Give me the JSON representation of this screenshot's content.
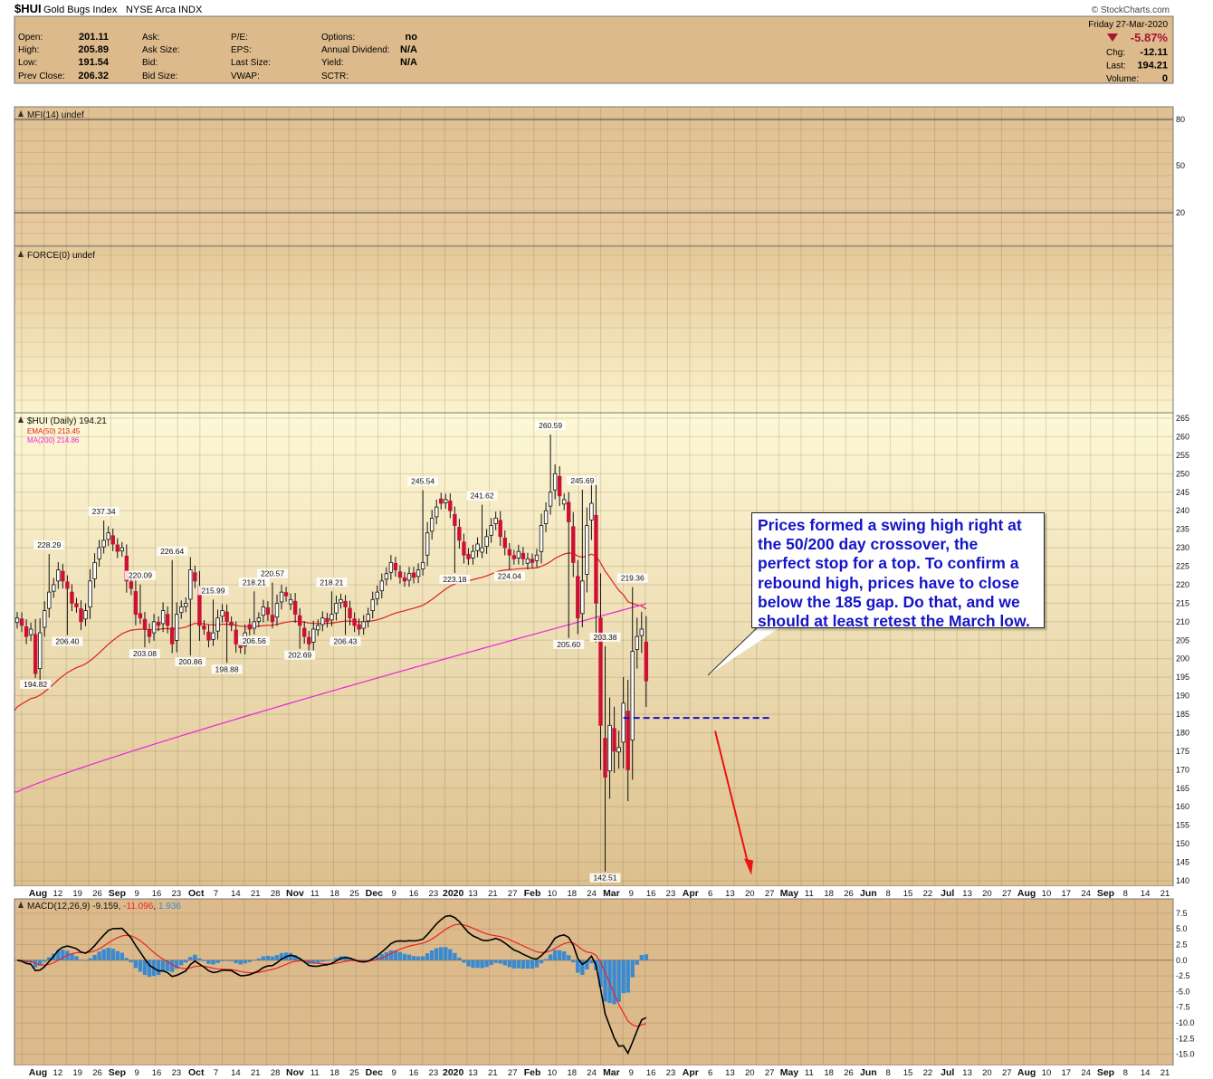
{
  "header": {
    "symbol": "$HUI",
    "name": "Gold Bugs Index",
    "exchange": "NYSE Arca",
    "type": "INDX",
    "watermark": "© StockCharts.com",
    "date": "Friday  27-Mar-2020",
    "change_pct": "-5.87%",
    "quote_left": [
      {
        "label": "Open:",
        "value": "201.11"
      },
      {
        "label": "High:",
        "value": "205.89"
      },
      {
        "label": "Low:",
        "value": "191.54"
      },
      {
        "label": "Prev Close:",
        "value": "206.32"
      }
    ],
    "quote_col2": [
      "Ask:",
      "Ask Size:",
      "Bid:",
      "Bid Size:"
    ],
    "quote_col3": [
      "P/E:",
      "EPS:",
      "Last Size:",
      "VWAP:"
    ],
    "quote_col4": [
      {
        "label": "Options:",
        "value": "no"
      },
      {
        "label": "Annual Dividend:",
        "value": "N/A"
      },
      {
        "label": "Yield:",
        "value": "N/A"
      },
      {
        "label": "SCTR:",
        "value": ""
      }
    ],
    "quote_right": [
      {
        "label": "Chg:",
        "value": "-12.11"
      },
      {
        "label": "Last:",
        "value": "194.21"
      },
      {
        "label": "Volume:",
        "value": "0"
      }
    ]
  },
  "colors": {
    "panel_bg": "#dcba8c",
    "price_bg_top": "#fdf8d6",
    "price_bg_bottom": "#dcc08e",
    "up": "#ffffff",
    "down": "#cc1133",
    "ema50": "#dd2020",
    "ma200": "#ee22dd",
    "macd_line": "#000000",
    "signal_line": "#ee2222",
    "histogram": "#3a8ad0",
    "annotation": "#1414c8",
    "gap_line": "#1414c8",
    "arrow": "#ee1111"
  },
  "panels": {
    "mfi": {
      "label": "MFI(14) undef",
      "ticks": [
        "80",
        "50",
        "20"
      ]
    },
    "force": {
      "label": "FORCE(0) undef"
    },
    "price": {
      "label": "$HUI (Daily) 194.21",
      "ema_label": "EMA(50) 213.45",
      "ma_label": "MA(200) 214.86"
    },
    "macd": {
      "label_prefix": "MACD(12,26,9)",
      "macd_value": "-9.159",
      "signal_value": "-11.096",
      "hist_value": "1.936"
    }
  },
  "annotation": {
    "lines": [
      "Prices formed a swing high right at",
      "the 50/200 day crossover, the",
      "perfect stop for a top. To confirm a",
      "rebound high, prices have to close",
      "below the 185 gap. Do that, and we",
      "should at least retest the March low."
    ]
  },
  "chart_data": {
    "type": "candlestick",
    "title": "$HUI Gold Bugs Index NYSE Arca INDX",
    "y_range": [
      140,
      265
    ],
    "y_ticks": [
      140,
      145,
      150,
      155,
      160,
      165,
      170,
      175,
      180,
      185,
      190,
      195,
      200,
      205,
      210,
      215,
      220,
      225,
      230,
      235,
      240,
      245,
      250,
      255,
      260,
      265
    ],
    "macd_range": [
      -16.5,
      9.5
    ],
    "macd_ticks": [
      "7.5",
      "5.0",
      "2.5",
      "0.0",
      "-2.5",
      "-5.0",
      "-7.5",
      "-10.0",
      "-12.5",
      "-15.0"
    ],
    "x_axis_labels": [
      {
        "t": "Aug",
        "m": 1
      },
      {
        "t": "12",
        "m": 0
      },
      {
        "t": "19",
        "m": 0
      },
      {
        "t": "26",
        "m": 0
      },
      {
        "t": "Sep",
        "m": 1
      },
      {
        "t": "9",
        "m": 0
      },
      {
        "t": "16",
        "m": 0
      },
      {
        "t": "23",
        "m": 0
      },
      {
        "t": "Oct",
        "m": 1
      },
      {
        "t": "7",
        "m": 0
      },
      {
        "t": "14",
        "m": 0
      },
      {
        "t": "21",
        "m": 0
      },
      {
        "t": "28",
        "m": 0
      },
      {
        "t": "Nov",
        "m": 1
      },
      {
        "t": "11",
        "m": 0
      },
      {
        "t": "18",
        "m": 0
      },
      {
        "t": "25",
        "m": 0
      },
      {
        "t": "Dec",
        "m": 1
      },
      {
        "t": "9",
        "m": 0
      },
      {
        "t": "16",
        "m": 0
      },
      {
        "t": "23",
        "m": 0
      },
      {
        "t": "2020",
        "m": 1
      },
      {
        "t": "13",
        "m": 0
      },
      {
        "t": "21",
        "m": 0
      },
      {
        "t": "27",
        "m": 0
      },
      {
        "t": "Feb",
        "m": 1
      },
      {
        "t": "10",
        "m": 0
      },
      {
        "t": "18",
        "m": 0
      },
      {
        "t": "24",
        "m": 0
      },
      {
        "t": "Mar",
        "m": 1
      },
      {
        "t": "9",
        "m": 0
      },
      {
        "t": "16",
        "m": 0
      },
      {
        "t": "23",
        "m": 0
      },
      {
        "t": "Apr",
        "m": 1
      },
      {
        "t": "6",
        "m": 0
      },
      {
        "t": "13",
        "m": 0
      },
      {
        "t": "20",
        "m": 0
      },
      {
        "t": "27",
        "m": 0
      },
      {
        "t": "May",
        "m": 1
      },
      {
        "t": "11",
        "m": 0
      },
      {
        "t": "18",
        "m": 0
      },
      {
        "t": "26",
        "m": 0
      },
      {
        "t": "Jun",
        "m": 1
      },
      {
        "t": "8",
        "m": 0
      },
      {
        "t": "15",
        "m": 0
      },
      {
        "t": "22",
        "m": 0
      },
      {
        "t": "Jul",
        "m": 1
      },
      {
        "t": "13",
        "m": 0
      },
      {
        "t": "20",
        "m": 0
      },
      {
        "t": "27",
        "m": 0
      },
      {
        "t": "Aug",
        "m": 1
      },
      {
        "t": "10",
        "m": 0
      },
      {
        "t": "17",
        "m": 0
      },
      {
        "t": "24",
        "m": 0
      },
      {
        "t": "Sep",
        "m": 1
      },
      {
        "t": "8",
        "m": 0
      },
      {
        "t": "14",
        "m": 0
      },
      {
        "t": "21",
        "m": 0
      }
    ],
    "price_labels": [
      {
        "text": "237.34",
        "value": 237.34,
        "pos": "above",
        "i": 19
      },
      {
        "text": "228.29",
        "value": 228.29,
        "pos": "above",
        "i": 7
      },
      {
        "text": "206.40",
        "value": 206.4,
        "pos": "below",
        "i": 11
      },
      {
        "text": "194.82",
        "value": 194.82,
        "pos": "below",
        "i": 4
      },
      {
        "text": "220.09",
        "value": 220.09,
        "pos": "above",
        "i": 27
      },
      {
        "text": "203.08",
        "value": 203.08,
        "pos": "below",
        "i": 28
      },
      {
        "text": "226.64",
        "value": 226.64,
        "pos": "above",
        "i": 34
      },
      {
        "text": "200.86",
        "value": 200.86,
        "pos": "below",
        "i": 38
      },
      {
        "text": "215.99",
        "value": 215.99,
        "pos": "above",
        "i": 43
      },
      {
        "text": "198.88",
        "value": 198.88,
        "pos": "below",
        "i": 46
      },
      {
        "text": "218.21",
        "value": 218.21,
        "pos": "above",
        "i": 52
      },
      {
        "text": "206.56",
        "value": 206.56,
        "pos": "below",
        "i": 52
      },
      {
        "text": "220.57",
        "value": 220.57,
        "pos": "above",
        "i": 56
      },
      {
        "text": "202.69",
        "value": 202.69,
        "pos": "below",
        "i": 62
      },
      {
        "text": "218.21",
        "value": 218.21,
        "pos": "above",
        "i": 69
      },
      {
        "text": "206.43",
        "value": 206.43,
        "pos": "below",
        "i": 72
      },
      {
        "text": "245.54",
        "value": 245.54,
        "pos": "above",
        "i": 89
      },
      {
        "text": "223.18",
        "value": 223.18,
        "pos": "below",
        "i": 96
      },
      {
        "text": "241.62",
        "value": 241.62,
        "pos": "above",
        "i": 102
      },
      {
        "text": "224.04",
        "value": 224.04,
        "pos": "below",
        "i": 108
      },
      {
        "text": "260.59",
        "value": 260.59,
        "pos": "above",
        "i": 117
      },
      {
        "text": "245.69",
        "value": 245.69,
        "pos": "above",
        "i": 124
      },
      {
        "text": "205.60",
        "value": 205.6,
        "pos": "below",
        "i": 121
      },
      {
        "text": "203.38",
        "value": 203.38,
        "pos": "above",
        "i": 129
      },
      {
        "text": "142.51",
        "value": 142.51,
        "pos": "below",
        "i": 129
      },
      {
        "text": "219.36",
        "value": 219.36,
        "pos": "above",
        "i": 135
      }
    ],
    "gap_level": 184,
    "close_series": [
      211,
      209,
      206,
      208,
      196,
      207,
      213,
      218,
      220,
      224,
      221,
      219,
      215,
      214,
      210,
      213,
      221,
      226,
      230,
      232,
      234,
      231,
      229,
      230,
      221,
      219,
      212,
      211,
      208,
      206,
      210,
      209,
      213,
      209,
      204,
      212,
      214,
      215,
      224,
      221,
      209,
      208,
      205,
      207,
      211,
      213,
      210,
      209,
      204,
      203,
      207,
      208,
      210,
      211,
      214,
      212,
      210,
      215,
      218,
      217,
      216,
      212,
      209,
      206,
      204,
      208,
      209,
      211,
      210,
      212,
      215,
      216,
      214,
      211,
      209,
      208,
      210,
      212,
      216,
      218,
      221,
      223,
      226,
      224,
      222,
      221,
      223,
      222,
      224,
      226,
      234,
      238,
      241,
      242,
      243,
      240,
      236,
      232,
      228,
      227,
      229,
      231,
      230,
      233,
      236,
      238,
      233,
      230,
      228,
      227,
      229,
      227,
      227,
      226,
      228,
      236,
      240,
      245,
      250,
      244,
      243,
      237,
      226,
      211,
      221,
      236,
      242,
      215,
      182,
      168,
      182,
      175,
      176,
      188,
      170,
      202,
      206,
      208,
      194
    ],
    "ema50_values": {
      "start": 186,
      "end": 213.45,
      "peak": 230.5
    },
    "ma200_values": {
      "start": 164,
      "end": 214.86
    },
    "macd_series": "computed (12,26,9)"
  }
}
